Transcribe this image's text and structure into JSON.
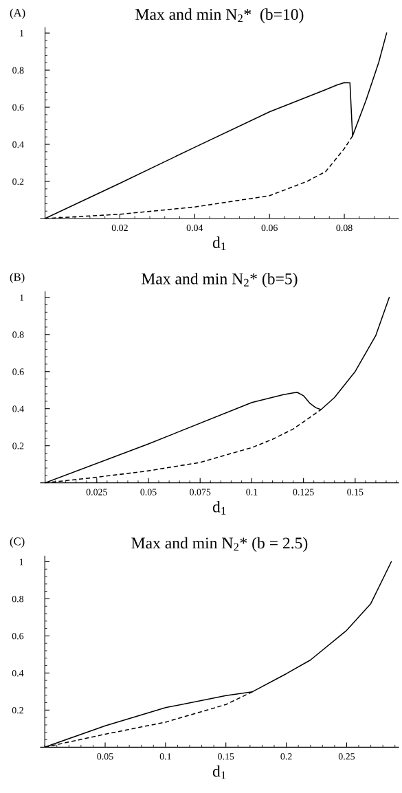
{
  "chart_data": [
    {
      "type": "line",
      "title": "Max and min N$_{2}$*  (b=10)",
      "xlabel": "d$_{1}$",
      "annotations": [
        "(A)"
      ],
      "xlim": [
        -0.0012,
        0.0945
      ],
      "ylim": [
        0,
        1.03
      ],
      "xticks": [
        0.02,
        0.04,
        0.06,
        0.08
      ],
      "yticks": [
        0.2,
        0.4,
        0.6,
        0.8,
        1
      ],
      "series": [
        {
          "color": "#000000",
          "line_style": "solid",
          "x": [
            0,
            0.02,
            0.04,
            0.06,
            0.075,
            0.078,
            0.08,
            0.0815,
            0.0822,
            0.0858,
            0.0892,
            0.0913
          ],
          "values": [
            0,
            0.19,
            0.384,
            0.575,
            0.695,
            0.72,
            0.733,
            0.732,
            0.445,
            0.637,
            0.842,
            1.0
          ]
        },
        {
          "color": "#000000",
          "line_style": "dashed",
          "x": [
            0,
            0.02,
            0.04,
            0.06,
            0.07,
            0.075,
            0.08,
            0.0822
          ],
          "values": [
            0,
            0.023,
            0.062,
            0.123,
            0.2,
            0.253,
            0.377,
            0.445
          ]
        }
      ]
    },
    {
      "type": "line",
      "title": "Max and min N$_{2}$* (b=5)",
      "xlabel": "d$_{1}$",
      "annotations": [
        "(B)"
      ],
      "xlim": [
        -0.0022,
        0.171
      ],
      "ylim": [
        0,
        1.03
      ],
      "xticks": [
        0.025,
        0.05,
        0.075,
        0.1,
        0.125,
        0.15
      ],
      "yticks": [
        0.2,
        0.4,
        0.6,
        0.8,
        1
      ],
      "series": [
        {
          "color": "#000000",
          "line_style": "solid",
          "x": [
            0,
            0.05,
            0.1,
            0.115,
            0.12,
            0.122,
            0.125,
            0.128,
            0.131,
            0.1335,
            0.14,
            0.15,
            0.16,
            0.1665
          ],
          "values": [
            0,
            0.21,
            0.433,
            0.475,
            0.485,
            0.488,
            0.47,
            0.43,
            0.405,
            0.395,
            0.46,
            0.6,
            0.795,
            1.0
          ]
        },
        {
          "color": "#000000",
          "line_style": "dashed",
          "x": [
            0,
            0.025,
            0.05,
            0.075,
            0.1,
            0.11,
            0.12,
            0.1335
          ],
          "values": [
            0,
            0.03,
            0.065,
            0.11,
            0.19,
            0.235,
            0.29,
            0.395
          ]
        }
      ]
    },
    {
      "type": "line",
      "title": "Max and min N$_{2}$* (b = 2.5)",
      "xlabel": "d$_{1}$",
      "annotations": [
        "(C)"
      ],
      "xlim": [
        -0.0035,
        0.293
      ],
      "ylim": [
        0,
        1.03
      ],
      "xticks": [
        0.05,
        0.1,
        0.15,
        0.2,
        0.25
      ],
      "yticks": [
        0.2,
        0.4,
        0.6,
        0.8,
        1
      ],
      "series": [
        {
          "color": "#000000",
          "line_style": "solid",
          "x": [
            0,
            0.05,
            0.1,
            0.15,
            0.172,
            0.2,
            0.22,
            0.25,
            0.27,
            0.287
          ],
          "values": [
            0,
            0.115,
            0.213,
            0.278,
            0.299,
            0.396,
            0.47,
            0.63,
            0.774,
            1.0
          ]
        },
        {
          "color": "#000000",
          "line_style": "dashed",
          "x": [
            0,
            0.05,
            0.1,
            0.15,
            0.172
          ],
          "values": [
            0,
            0.07,
            0.135,
            0.23,
            0.299
          ]
        }
      ]
    }
  ]
}
